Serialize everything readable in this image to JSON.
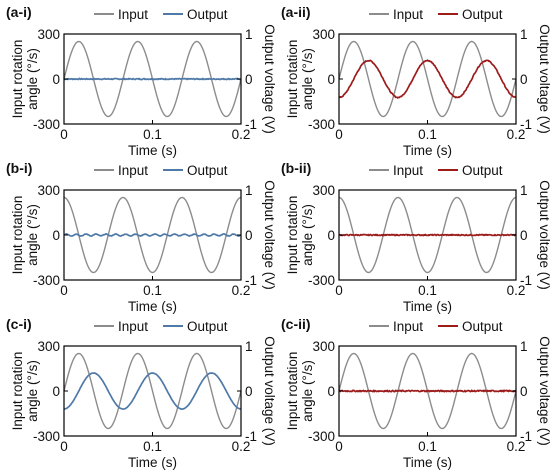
{
  "figure": {
    "colors": {
      "input": "#8c8c8c",
      "output_blue": "#4f79a6",
      "output_red": "#9c1b1b",
      "axis": "#000000"
    }
  },
  "chart_data": [
    {
      "panel_label": "(a-i)",
      "type": "line",
      "xlabel": "Time (s)",
      "ylabel_left": "Input rotation angle (°/s)",
      "ylabel_right": "Output voltage (V)",
      "xlim": [
        0,
        0.2
      ],
      "ylim_left": [
        -300,
        300
      ],
      "ylim_right": [
        -1,
        1
      ],
      "x_ticks": [
        "0",
        "0.1",
        "0.2"
      ],
      "y_ticks_left": [
        "300",
        "0",
        "-300"
      ],
      "y_ticks_right": [
        "1",
        "0",
        "-1"
      ],
      "legend": [
        "Input",
        "Output"
      ],
      "output_color": "blue",
      "series": [
        {
          "name": "Input",
          "axis": "left",
          "amplitude": 250,
          "frequency_hz": 15,
          "phase": "sine",
          "x": [
            0,
            0.0167,
            0.0333,
            0.05,
            0.0667,
            0.0833,
            0.1,
            0.1167,
            0.1333,
            0.15,
            0.1667,
            0.1833,
            0.2
          ],
          "values": [
            0,
            250,
            0,
            -250,
            0,
            250,
            0,
            -250,
            0,
            250,
            0,
            -250,
            0
          ]
        },
        {
          "name": "Output",
          "axis": "right",
          "amplitude": 0,
          "frequency_hz": 15,
          "phase": "flat",
          "noise": 0.012,
          "x": [
            0,
            0.1,
            0.2
          ],
          "values": [
            0,
            0,
            0
          ]
        }
      ]
    },
    {
      "panel_label": "(a-ii)",
      "type": "line",
      "xlabel": "Time (s)",
      "ylabel_left": "Input rotation angle (°/s)",
      "ylabel_right": "Output voltage (V)",
      "xlim": [
        0,
        0.2
      ],
      "ylim_left": [
        -300,
        300
      ],
      "ylim_right": [
        -1,
        1
      ],
      "x_ticks": [
        "0",
        "0.1",
        "0.2"
      ],
      "y_ticks_left": [
        "300",
        "0",
        "-300"
      ],
      "y_ticks_right": [
        "1",
        "0",
        "-1"
      ],
      "legend": [
        "Input",
        "Output"
      ],
      "output_color": "red",
      "series": [
        {
          "name": "Input",
          "axis": "left",
          "amplitude": 250,
          "frequency_hz": 15,
          "phase": "sine",
          "x": [
            0,
            0.0167,
            0.0333,
            0.05,
            0.0667,
            0.0833,
            0.1,
            0.1167,
            0.1333,
            0.15,
            0.1667,
            0.1833,
            0.2
          ],
          "values": [
            0,
            250,
            0,
            -250,
            0,
            250,
            0,
            -250,
            0,
            250,
            0,
            -250,
            0
          ]
        },
        {
          "name": "Output",
          "axis": "right",
          "amplitude": 0.41,
          "frequency_hz": 15,
          "phase": "negcos",
          "noise": 0.012,
          "x": [
            0,
            0.0333,
            0.0667,
            0.1,
            0.1333,
            0.1667,
            0.2
          ],
          "values": [
            -0.41,
            0.41,
            -0.41,
            0.41,
            -0.41,
            0.41,
            -0.41
          ]
        }
      ]
    },
    {
      "panel_label": "(b-i)",
      "type": "line",
      "xlabel": "Time (s)",
      "ylabel_left": "Input rotation angle (°/s)",
      "ylabel_right": "Output voltage (V)",
      "xlim": [
        0,
        0.2
      ],
      "ylim_left": [
        -300,
        300
      ],
      "ylim_right": [
        -1,
        1
      ],
      "x_ticks": [
        "0",
        "0.1",
        "0.2"
      ],
      "y_ticks_left": [
        "300",
        "0",
        "-300"
      ],
      "y_ticks_right": [
        "1",
        "0",
        "-1"
      ],
      "legend": [
        "Input",
        "Output"
      ],
      "output_color": "blue",
      "series": [
        {
          "name": "Input",
          "axis": "left",
          "amplitude": 250,
          "frequency_hz": 15,
          "phase": "cos",
          "x": [
            0,
            0.0333,
            0.0667,
            0.1,
            0.1333,
            0.1667,
            0.2
          ],
          "values": [
            250,
            -250,
            250,
            -250,
            250,
            -250,
            250
          ]
        },
        {
          "name": "Output",
          "axis": "right",
          "amplitude": 0.02,
          "frequency_hz": 90,
          "phase": "ripple",
          "noise": 0.006,
          "x": [
            0,
            0.1,
            0.2
          ],
          "values": [
            0,
            0,
            0
          ]
        }
      ]
    },
    {
      "panel_label": "(b-ii)",
      "type": "line",
      "xlabel": "Time (s)",
      "ylabel_left": "Input rotation angle (°/s)",
      "ylabel_right": "Output voltage (V)",
      "xlim": [
        0,
        0.2
      ],
      "ylim_left": [
        -300,
        300
      ],
      "ylim_right": [
        -1,
        1
      ],
      "x_ticks": [
        "0",
        "0.1",
        "0.2"
      ],
      "y_ticks_left": [
        "300",
        "0",
        "-300"
      ],
      "y_ticks_right": [
        "1",
        "0",
        "-1"
      ],
      "legend": [
        "Input",
        "Output"
      ],
      "output_color": "red",
      "series": [
        {
          "name": "Input",
          "axis": "left",
          "amplitude": 250,
          "frequency_hz": 15,
          "phase": "cos",
          "x": [
            0,
            0.0333,
            0.0667,
            0.1,
            0.1333,
            0.1667,
            0.2
          ],
          "values": [
            250,
            -250,
            250,
            -250,
            250,
            -250,
            250
          ]
        },
        {
          "name": "Output",
          "axis": "right",
          "amplitude": 0,
          "frequency_hz": 15,
          "phase": "flat",
          "noise": 0.012,
          "x": [
            0,
            0.1,
            0.2
          ],
          "values": [
            0,
            0,
            0
          ]
        }
      ]
    },
    {
      "panel_label": "(c-i)",
      "type": "line",
      "xlabel": "Time (s)",
      "ylabel_left": "Input rotation angle (°/s)",
      "ylabel_right": "Output voltage (V)",
      "xlim": [
        0,
        0.2
      ],
      "ylim_left": [
        -300,
        300
      ],
      "ylim_right": [
        -1,
        1
      ],
      "x_ticks": [
        "0",
        "0.1",
        "0.2"
      ],
      "y_ticks_left": [
        "300",
        "0",
        "-300"
      ],
      "y_ticks_right": [
        "1",
        "0",
        "-1"
      ],
      "legend": [
        "Input",
        "Output"
      ],
      "output_color": "blue",
      "series": [
        {
          "name": "Input",
          "axis": "left",
          "amplitude": 250,
          "frequency_hz": 15,
          "phase": "sine",
          "x": [
            0,
            0.0167,
            0.0333,
            0.05,
            0.0667,
            0.0833,
            0.1,
            0.1167,
            0.1333,
            0.15,
            0.1667,
            0.1833,
            0.2
          ],
          "values": [
            0,
            250,
            0,
            -250,
            0,
            250,
            0,
            -250,
            0,
            250,
            0,
            -250,
            0
          ]
        },
        {
          "name": "Output",
          "axis": "right",
          "amplitude": 0.4,
          "frequency_hz": 15,
          "phase": "negcos",
          "noise": 0.003,
          "x": [
            0,
            0.0333,
            0.0667,
            0.1,
            0.1333,
            0.1667,
            0.2
          ],
          "values": [
            -0.4,
            0.4,
            -0.4,
            0.4,
            -0.4,
            0.4,
            -0.4
          ]
        }
      ]
    },
    {
      "panel_label": "(c-ii)",
      "type": "line",
      "xlabel": "Time (s)",
      "ylabel_left": "Input rotation angle (°/s)",
      "ylabel_right": "Output voltage (V)",
      "xlim": [
        0,
        0.2
      ],
      "ylim_left": [
        -300,
        300
      ],
      "ylim_right": [
        -1,
        1
      ],
      "x_ticks": [
        "0",
        "0.1",
        "0.2"
      ],
      "y_ticks_left": [
        "300",
        "0",
        "-300"
      ],
      "y_ticks_right": [
        "1",
        "0",
        "-1"
      ],
      "legend": [
        "Input",
        "Output"
      ],
      "output_color": "red",
      "series": [
        {
          "name": "Input",
          "axis": "left",
          "amplitude": 250,
          "frequency_hz": 15,
          "phase": "sine",
          "x": [
            0,
            0.0167,
            0.0333,
            0.05,
            0.0667,
            0.0833,
            0.1,
            0.1167,
            0.1333,
            0.15,
            0.1667,
            0.1833,
            0.2
          ],
          "values": [
            0,
            250,
            0,
            -250,
            0,
            250,
            0,
            -250,
            0,
            250,
            0,
            -250,
            0
          ]
        },
        {
          "name": "Output",
          "axis": "right",
          "amplitude": 0,
          "frequency_hz": 15,
          "phase": "flat",
          "noise": 0.015,
          "x": [
            0,
            0.1,
            0.2
          ],
          "values": [
            0,
            0,
            0
          ]
        }
      ]
    }
  ]
}
